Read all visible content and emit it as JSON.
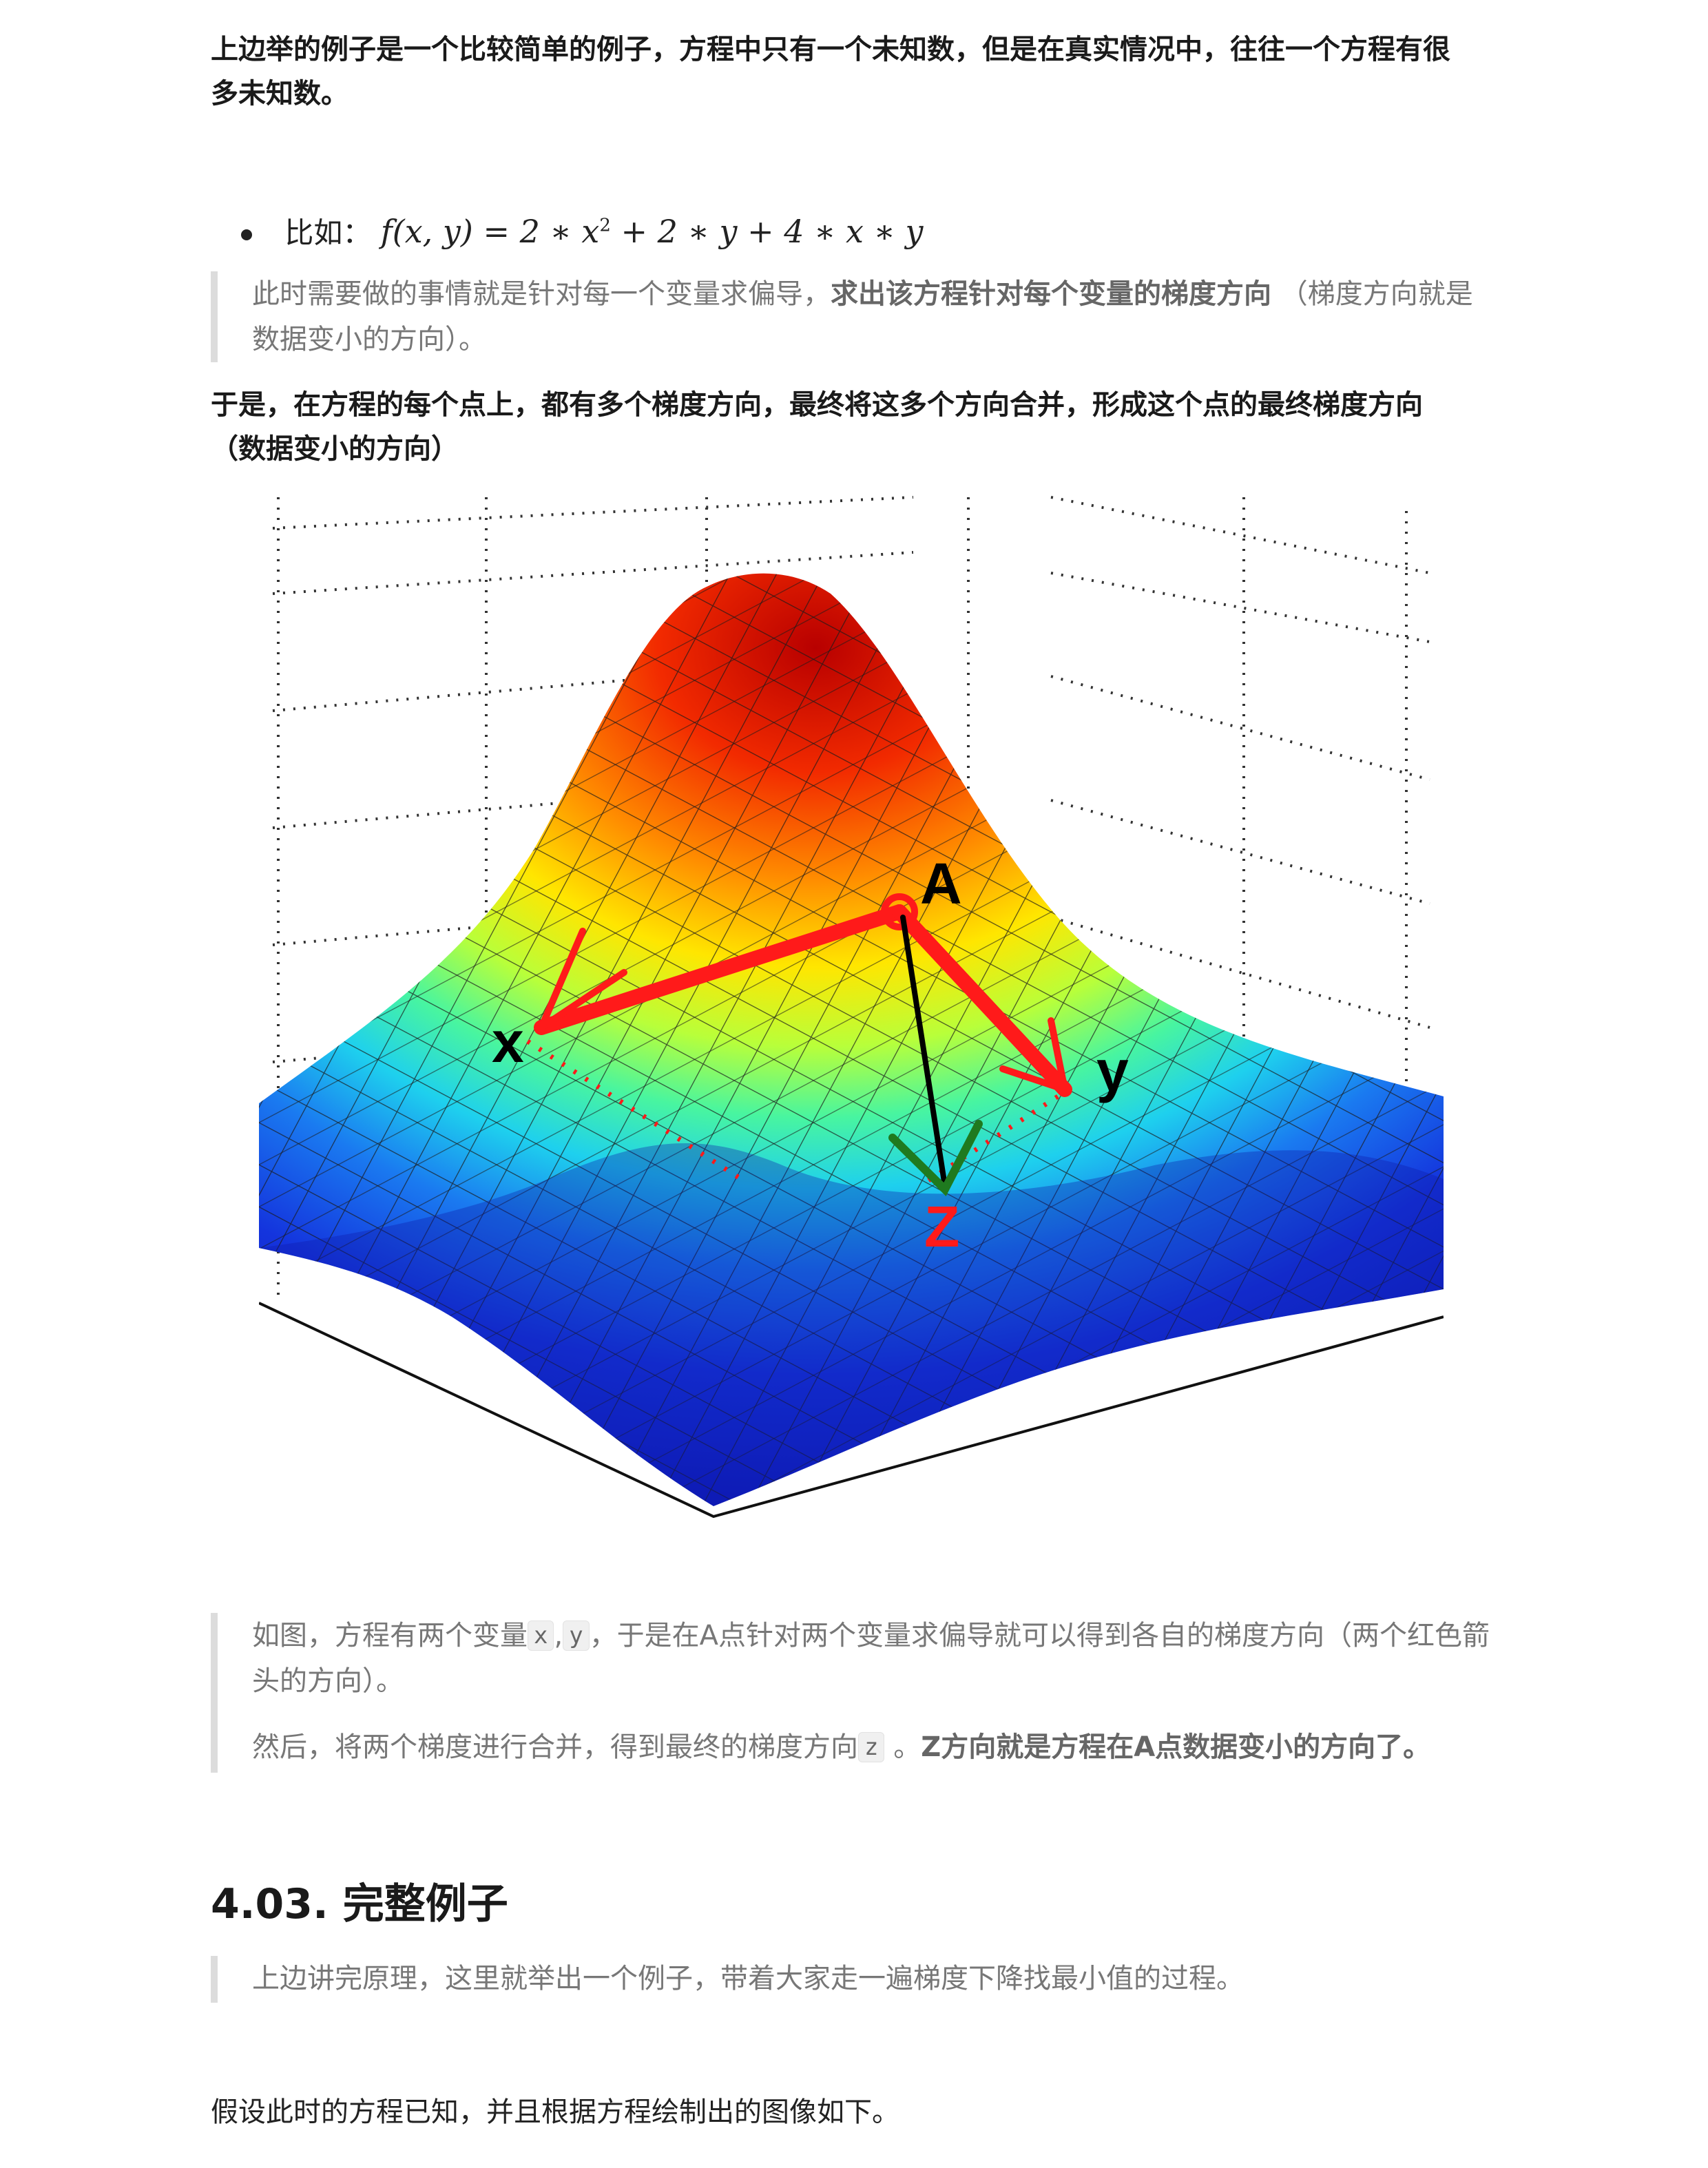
{
  "para1": "上边举的例子是一个比较简单的例子，方程中只有一个未知数，但是在真实情况中，往往一个方程有很多未知数。",
  "bullet": {
    "label": "比如：",
    "formula_f": "f(x, y)",
    "formula_eq": " = 2 ∗ x",
    "formula_sup": "2",
    "formula_rest": " + 2 ∗ y + 4 ∗ x ∗ y"
  },
  "quote1": {
    "text_a": "此时需要做的事情就是针对每一个变量求偏导，",
    "bold": "求出该方程针对每个变量的梯度方向",
    "text_b": " （梯度方向就是数据变小的方向）。"
  },
  "para2": "于是，在方程的每个点上，都有多个梯度方向，最终将这多个方向合并，形成这个点的最终梯度方向（数据变小的方向）",
  "figure": {
    "label_a": "A",
    "label_x": "x",
    "label_y": "y",
    "label_z": "Z"
  },
  "quote2": {
    "p1_a": "如图，方程有两个变量",
    "code_x": "x",
    "comma": ",",
    "code_y": "y",
    "p1_b": "，于是在A点针对两个变量求偏导就可以得到各自的梯度方向（两个红色箭头的方向）。",
    "p2_a": "然后，将两个梯度进行合并，得到最终的梯度方向",
    "code_z": "z",
    "p2_b": " 。",
    "p2_bold": "Z方向就是方程在A点数据变小的方向了。"
  },
  "heading": "4.03. 完整例子",
  "quote3": "上边讲完原理，这里就举出一个例子，带着大家走一遍梯度下降找最小值的过程。",
  "para3": "假设此时的方程已知，并且根据方程绘制出的图像如下。"
}
